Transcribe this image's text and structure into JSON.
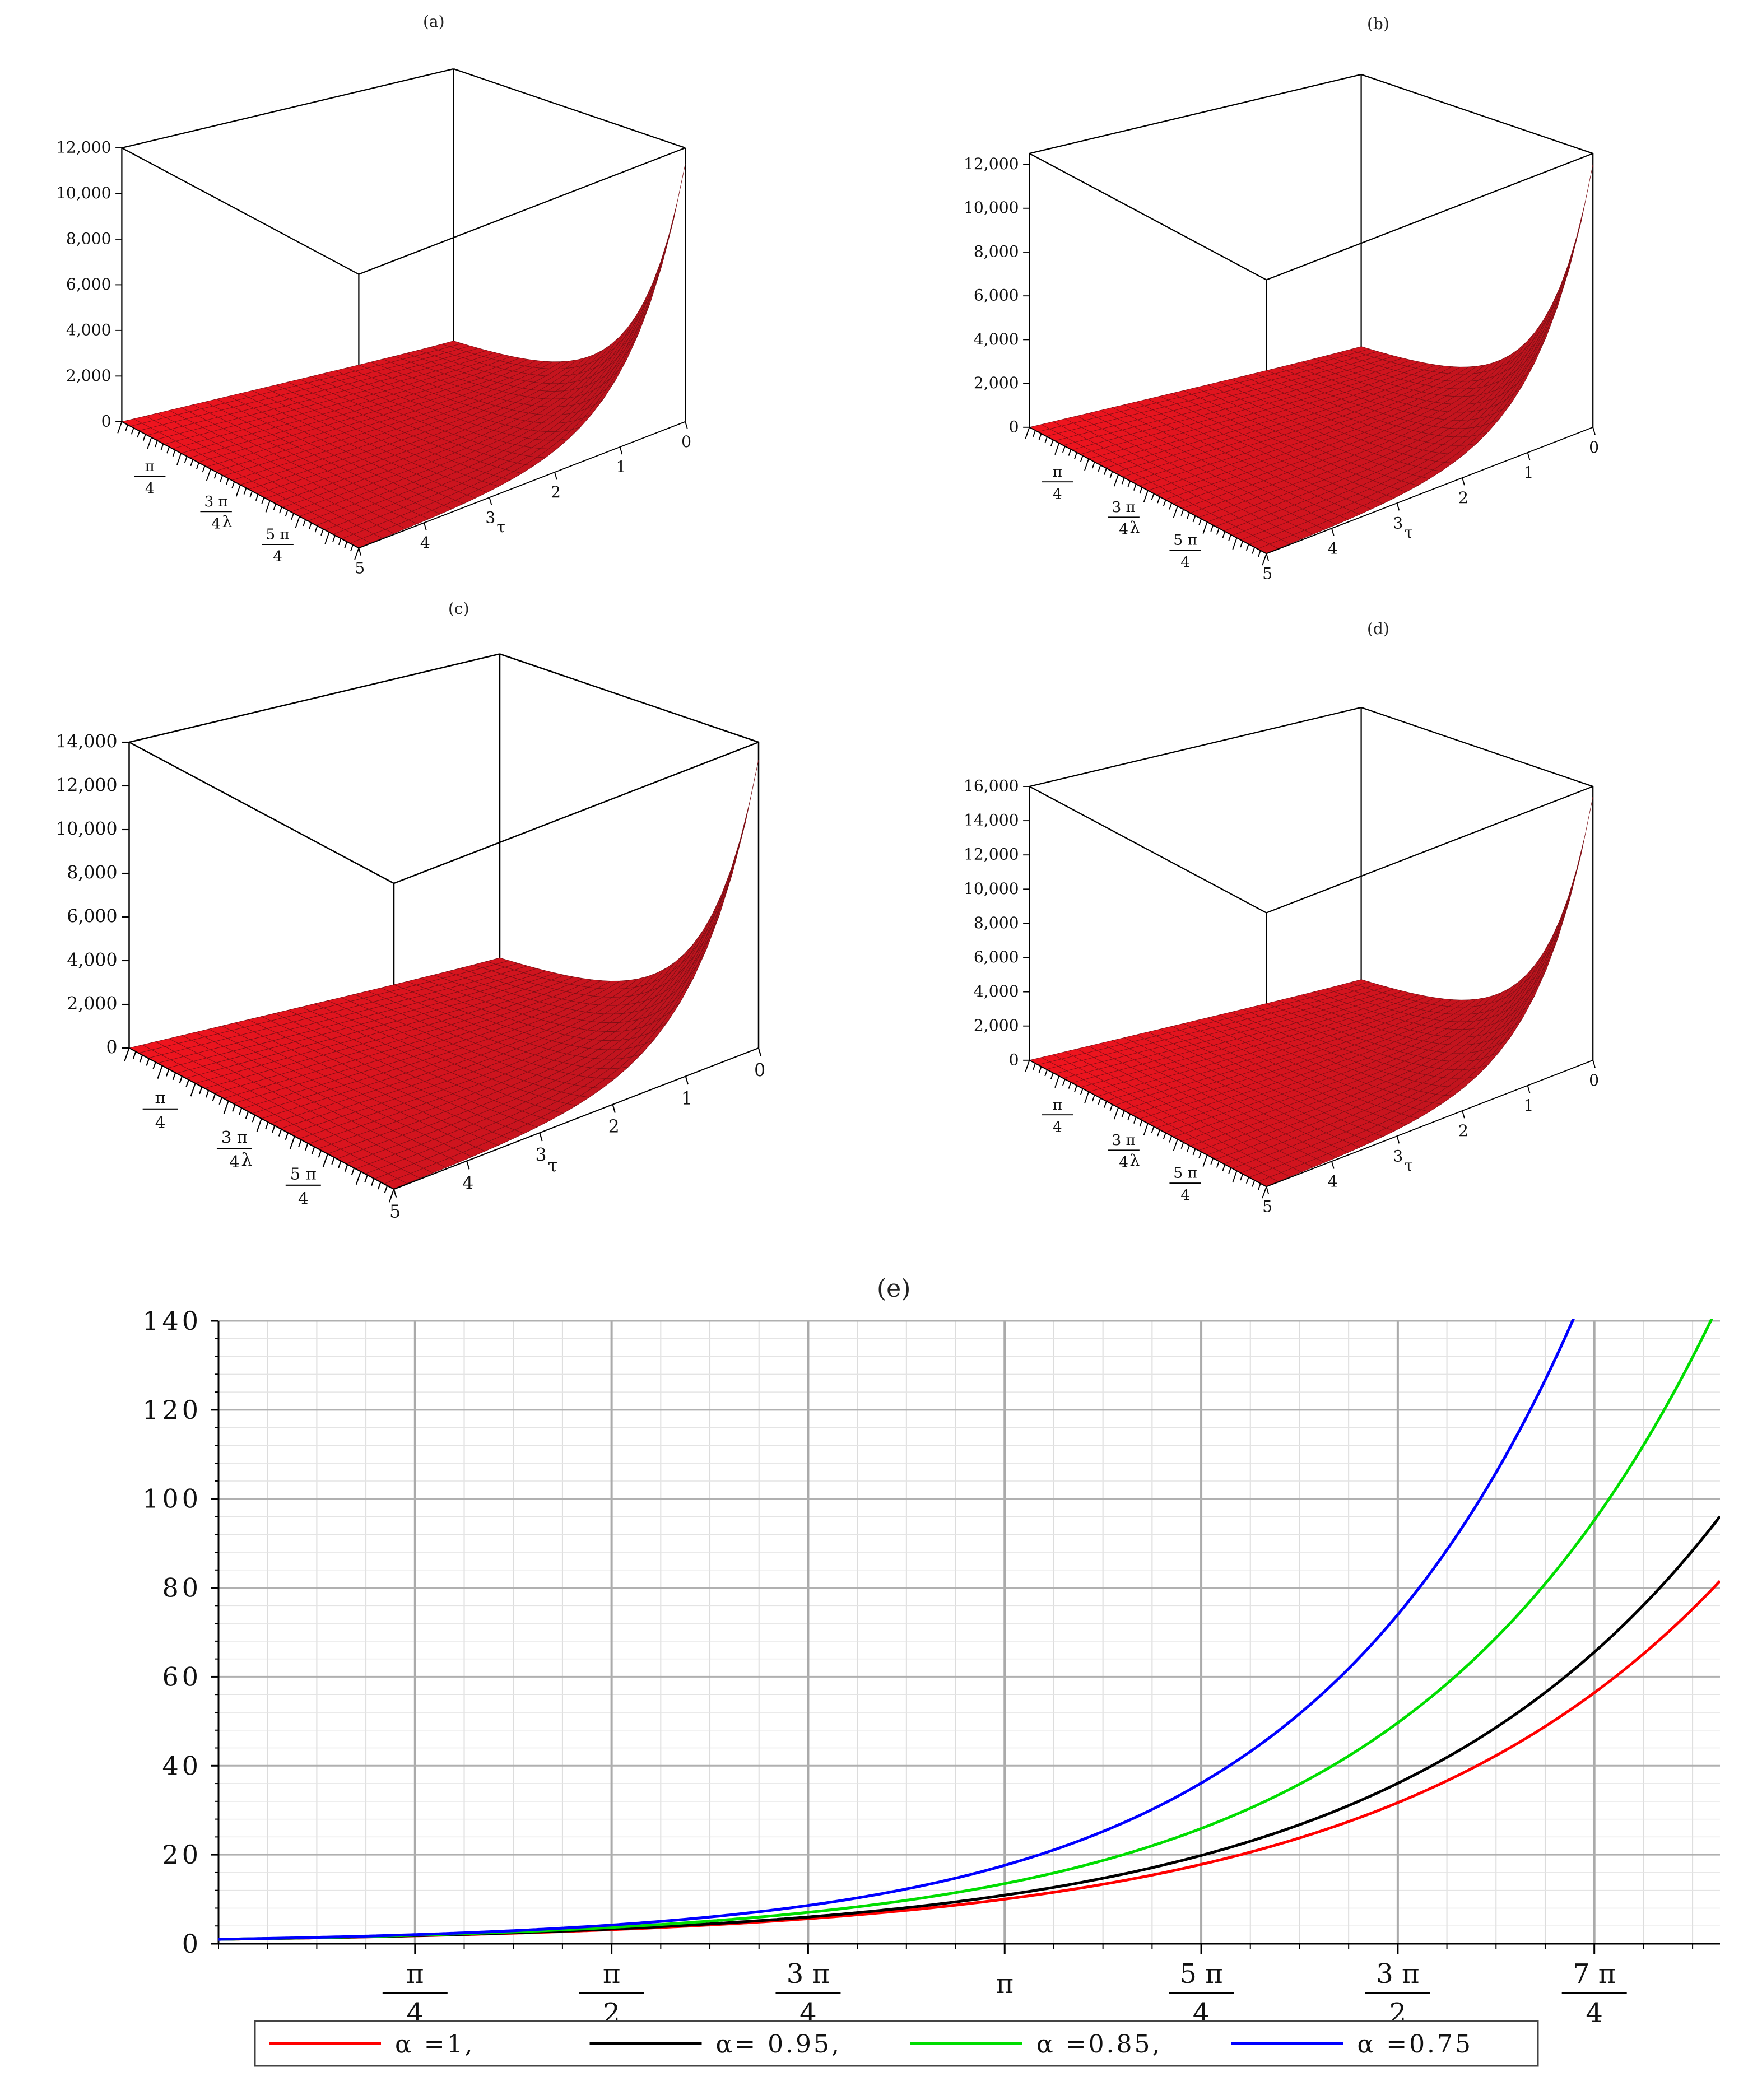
{
  "panels": {
    "a": {
      "label": "(a)"
    },
    "b": {
      "label": "(b)"
    },
    "c": {
      "label": "(c)"
    },
    "d": {
      "label": "(d)"
    },
    "e": {
      "label": "(e)"
    }
  },
  "chart_data": [
    {
      "type": "surface",
      "panel": "(a)",
      "zticks": [
        "0",
        "2,000",
        "4,000",
        "6,000",
        "8,000",
        "10,000",
        "12,000"
      ],
      "ztick_values": [
        0,
        2000,
        4000,
        6000,
        8000,
        10000,
        12000
      ],
      "tau_ticks": [
        "0",
        "1",
        "2",
        "3",
        "4",
        "5"
      ],
      "lambda_ticks": [
        [
          "π",
          "4"
        ],
        [
          "3 π",
          "4"
        ],
        [
          "5 π",
          "4"
        ]
      ],
      "xlabel": "λ",
      "ylabel": "τ",
      "zmax": 11300,
      "zlim": [
        0,
        12000
      ]
    },
    {
      "type": "surface",
      "panel": "(b)",
      "zticks": [
        "0",
        "2,000",
        "4,000",
        "6,000",
        "8,000",
        "10,000",
        "12,000"
      ],
      "ztick_values": [
        0,
        2000,
        4000,
        6000,
        8000,
        10000,
        12000
      ],
      "tau_ticks": [
        "0",
        "1",
        "2",
        "3",
        "4",
        "5"
      ],
      "lambda_ticks": [
        [
          "π",
          "4"
        ],
        [
          "3 π",
          "4"
        ],
        [
          "5 π",
          "4"
        ]
      ],
      "xlabel": "λ",
      "ylabel": "τ",
      "zmax": 12000,
      "zlim": [
        0,
        12500
      ]
    },
    {
      "type": "surface",
      "panel": "(c)",
      "zticks": [
        "0",
        "2,000",
        "4,000",
        "6,000",
        "8,000",
        "10,000",
        "12,000",
        "14,000"
      ],
      "ztick_values": [
        0,
        2000,
        4000,
        6000,
        8000,
        10000,
        12000,
        14000
      ],
      "tau_ticks": [
        "0",
        "1",
        "2",
        "3",
        "4",
        "5"
      ],
      "lambda_ticks": [
        [
          "π",
          "4"
        ],
        [
          "3 π",
          "4"
        ],
        [
          "5 π",
          "4"
        ]
      ],
      "xlabel": "λ",
      "ylabel": "τ",
      "zmax": 13200,
      "zlim": [
        0,
        14000
      ]
    },
    {
      "type": "surface",
      "panel": "(d)",
      "zticks": [
        "0",
        "2,000",
        "4,000",
        "6,000",
        "8,000",
        "10,000",
        "12,000",
        "14,000",
        "16,000"
      ],
      "ztick_values": [
        0,
        2000,
        4000,
        6000,
        8000,
        10000,
        12000,
        14000,
        16000
      ],
      "tau_ticks": [
        "0",
        "1",
        "2",
        "3",
        "4",
        "5"
      ],
      "lambda_ticks": [
        [
          "π",
          "4"
        ],
        [
          "3 π",
          "4"
        ],
        [
          "5 π",
          "4"
        ]
      ],
      "xlabel": "λ",
      "ylabel": "τ",
      "zmax": 15400,
      "zlim": [
        0,
        16000
      ]
    },
    {
      "type": "line",
      "panel": "(e)",
      "xlabel": "λ",
      "xticks": [
        {
          "value": 0.7854,
          "num": "π",
          "den": "4"
        },
        {
          "value": 1.5708,
          "num": "π",
          "den": "2"
        },
        {
          "value": 2.3562,
          "num": "3 π",
          "den": "4"
        },
        {
          "value": 3.1416,
          "num": "π",
          "den": ""
        },
        {
          "value": 3.927,
          "num": "5 π",
          "den": "4"
        },
        {
          "value": 4.7124,
          "num": "3 π",
          "den": "2"
        },
        {
          "value": 5.4978,
          "num": "7 π",
          "den": "4"
        }
      ],
      "yticks": [
        "0",
        "20",
        "40",
        "60",
        "80",
        "100",
        "120",
        "140"
      ],
      "ytick_values": [
        0,
        20,
        40,
        60,
        80,
        100,
        120,
        140
      ],
      "xlim": [
        0,
        6.0
      ],
      "ylim": [
        0,
        140
      ],
      "grid": true,
      "legend_position": "bottom",
      "series": [
        {
          "name": "α =1,",
          "color": "#ff0000",
          "rate": 0.7335
        },
        {
          "name": "α= 0.95,",
          "color": "#000000",
          "rate": 0.7608
        },
        {
          "name": "α =0.85,",
          "color": "#00dd00",
          "rate": 0.8287
        },
        {
          "name": "α =0.75",
          "color": "#0000ff",
          "rate": 0.9133
        }
      ]
    }
  ]
}
